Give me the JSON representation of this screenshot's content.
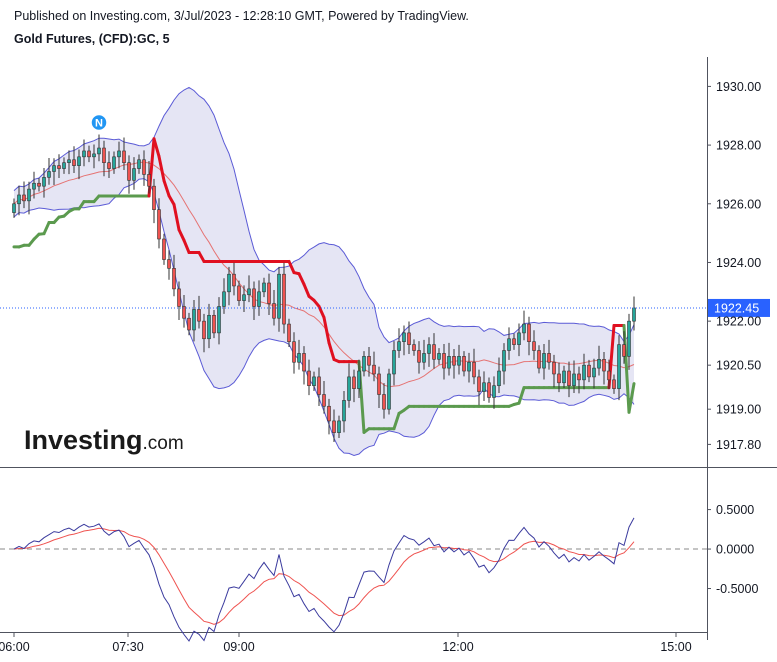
{
  "header": {
    "published": "Published on Investing.com, 3/Jul/2023 - 12:28:10 GMT, Powered by TradingView.",
    "symbol": "Gold Futures, (CFD):GC, 5"
  },
  "logo": {
    "brand": "Investing",
    "suffix": ".com"
  },
  "marker": {
    "label": "N",
    "color": "#2196f3"
  },
  "current_price": {
    "value": 1922.45,
    "label": "1922.45",
    "color": "#2962ff"
  },
  "colors": {
    "up": "#26a69a",
    "down": "#ef5350",
    "band_fill": "#dcdcf0",
    "band_line": "#5b5bd6",
    "ma_line": "#e57373",
    "st_up": "#5b9a4e",
    "st_down": "#e01020",
    "osc_main": "#3b3b9e",
    "osc_signal": "#ef5350"
  },
  "chart_data": [
    {
      "type": "candlestick",
      "title": "Gold Futures, (CFD):GC, 5",
      "y_ticks": [
        "1930.00",
        "1928.00",
        "1926.00",
        "1924.00",
        "1922.00",
        "1920.50",
        "1919.00",
        "1917.80"
      ],
      "x_ticks": [
        "06:00",
        "07:30",
        "09:00",
        "12:00",
        "15:00"
      ],
      "ylim": [
        1917.2,
        1930.9
      ],
      "closes": [
        1926.0,
        1926.3,
        1926.1,
        1926.5,
        1926.7,
        1926.6,
        1926.9,
        1927.1,
        1927.3,
        1927.2,
        1927.4,
        1927.5,
        1927.3,
        1927.6,
        1927.8,
        1927.6,
        1927.7,
        1927.9,
        1927.4,
        1927.2,
        1927.6,
        1927.8,
        1927.4,
        1926.8,
        1927.2,
        1927.5,
        1927.0,
        1926.6,
        1925.8,
        1924.8,
        1924.1,
        1923.8,
        1923.1,
        1922.5,
        1922.1,
        1921.7,
        1922.4,
        1922.0,
        1921.4,
        1922.2,
        1921.6,
        1922.5,
        1923.0,
        1923.6,
        1923.2,
        1922.7,
        1922.9,
        1923.1,
        1922.5,
        1923.0,
        1923.3,
        1922.6,
        1922.1,
        1923.6,
        1921.9,
        1921.3,
        1920.6,
        1920.9,
        1920.3,
        1919.8,
        1920.1,
        1919.5,
        1919.1,
        1918.6,
        1918.2,
        1918.6,
        1919.3,
        1920.1,
        1919.7,
        1920.3,
        1920.8,
        1920.5,
        1920.2,
        1919.5,
        1919.0,
        1920.2,
        1921.0,
        1921.3,
        1921.6,
        1921.2,
        1921.0,
        1920.6,
        1920.9,
        1921.2,
        1920.7,
        1920.9,
        1920.4,
        1920.8,
        1920.5,
        1920.8,
        1920.3,
        1920.6,
        1920.1,
        1919.6,
        1919.9,
        1919.4,
        1919.8,
        1920.3,
        1921.0,
        1921.4,
        1921.2,
        1921.6,
        1921.9,
        1921.3,
        1921.0,
        1920.4,
        1920.9,
        1920.6,
        1920.2,
        1919.9,
        1920.3,
        1919.8,
        1920.2,
        1920.0,
        1920.5,
        1920.1,
        1920.4,
        1920.7,
        1920.3,
        1920.0,
        1919.7,
        1921.2,
        1920.8,
        1922.0,
        1922.45
      ]
    },
    {
      "type": "line",
      "y_ticks": [
        "0.5000",
        "0.0000",
        "-0.5000"
      ],
      "ylim": [
        -1.0,
        0.9
      ],
      "zero_line": true
    }
  ]
}
